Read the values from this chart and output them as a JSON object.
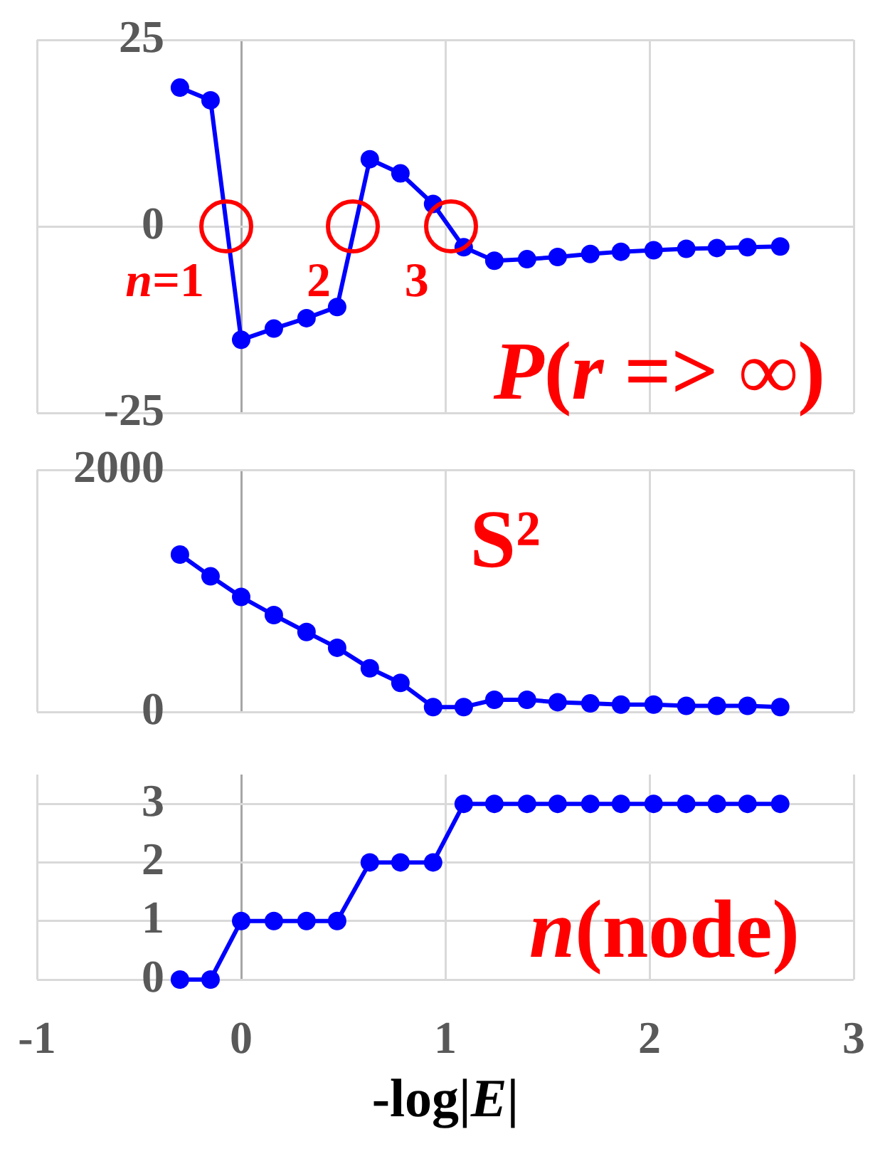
{
  "chart_data": [
    {
      "type": "line",
      "title": "P(r => ∞)",
      "x": [
        -0.3,
        -0.15,
        0,
        0.16,
        0.32,
        0.47,
        0.63,
        0.78,
        0.94,
        1.09,
        1.24,
        1.4,
        1.55,
        1.71,
        1.86,
        2.02,
        2.18,
        2.33,
        2.48,
        2.64
      ],
      "values": [
        18.6,
        16.9,
        -15.2,
        -13.7,
        -12.3,
        -10.8,
        9,
        7.1,
        3,
        -2.8,
        -4.6,
        -4.4,
        -4.1,
        -3.7,
        -3.4,
        -3.2,
        -3,
        -2.9,
        -2.8,
        -2.7
      ],
      "color": "#0000ff",
      "marker": "circle",
      "xlim": [
        -1,
        3
      ],
      "xticks": [
        -1,
        0,
        1,
        2,
        3
      ],
      "ylim": [
        -25,
        25
      ],
      "yticks": [
        -25,
        0,
        25
      ],
      "grid": true,
      "tick_labels": "y",
      "annotations": [
        {
          "text": "n=1",
          "x": -0.07,
          "y": 0
        },
        {
          "text": "2",
          "x": 0.55,
          "y": 0
        },
        {
          "text": "3",
          "x": 1.03,
          "y": 0
        }
      ]
    },
    {
      "type": "line",
      "title": "S²",
      "x": [
        -0.3,
        -0.15,
        0,
        0.16,
        0.32,
        0.47,
        0.63,
        0.78,
        0.94,
        1.09,
        1.24,
        1.4,
        1.55,
        1.71,
        1.86,
        2.02,
        2.18,
        2.33,
        2.48,
        2.64
      ],
      "values": [
        1300,
        1120,
        950,
        800,
        660,
        530,
        360,
        240,
        40,
        40,
        100,
        100,
        80,
        70,
        60,
        60,
        50,
        50,
        50,
        40
      ],
      "color": "#0000ff",
      "marker": "circle",
      "xlim": [
        -1,
        3
      ],
      "xticks": [
        -1,
        0,
        1,
        2,
        3
      ],
      "ylim": [
        0,
        2000
      ],
      "yticks": [
        0,
        2000
      ],
      "grid": true,
      "tick_labels": "y"
    },
    {
      "type": "line",
      "title": "n(node)",
      "xlabel": "-log|E|",
      "x": [
        -0.3,
        -0.15,
        0,
        0.16,
        0.32,
        0.47,
        0.63,
        0.78,
        0.94,
        1.09,
        1.24,
        1.4,
        1.55,
        1.71,
        1.86,
        2.02,
        2.18,
        2.33,
        2.48,
        2.64
      ],
      "values": [
        0,
        0,
        1,
        1,
        1,
        1,
        2,
        2,
        2,
        3,
        3,
        3,
        3,
        3,
        3,
        3,
        3,
        3,
        3,
        3
      ],
      "color": "#0000ff",
      "marker": "circle",
      "xlim": [
        -1,
        3
      ],
      "xticks": [
        -1,
        0,
        1,
        2,
        3
      ],
      "ylim": [
        0,
        3.5
      ],
      "yticks": [
        0,
        1,
        2,
        3
      ],
      "grid": true
    }
  ]
}
